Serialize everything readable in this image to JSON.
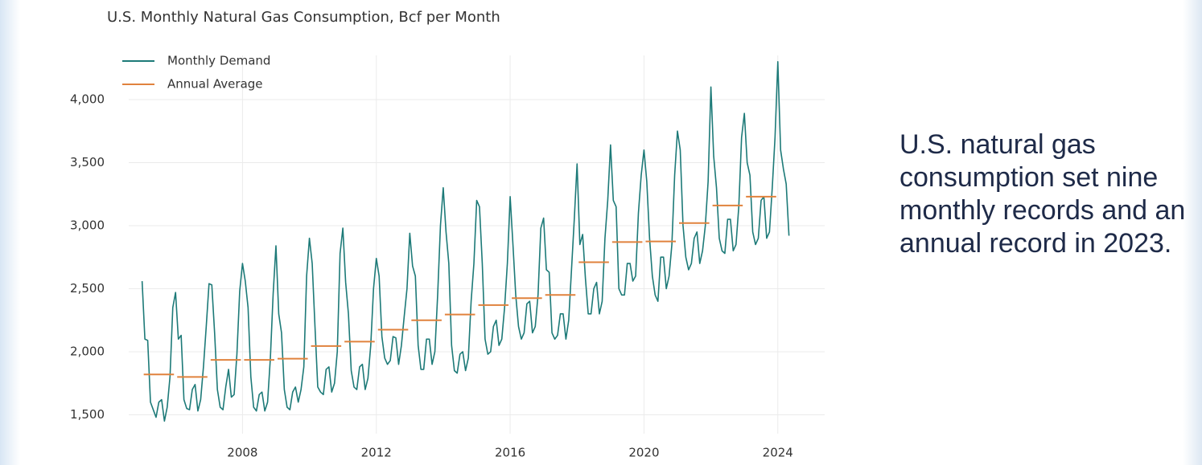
{
  "chart_data": {
    "type": "line",
    "title": "U.S. Monthly Natural Gas Consumption, Bcf per Month",
    "xlim": [
      2004.6,
      2025.4
    ],
    "xticks": [
      2008,
      2012,
      2016,
      2020,
      2024
    ],
    "ylim": [
      1350,
      4350
    ],
    "yticks": [
      {
        "value": 1500,
        "label": "1,500"
      },
      {
        "value": 2000,
        "label": "2,000"
      },
      {
        "value": 2500,
        "label": "2,500"
      },
      {
        "value": 3000,
        "label": "3,000"
      },
      {
        "value": 3500,
        "label": "3,500"
      },
      {
        "value": 4000,
        "label": "4,000"
      }
    ],
    "grid": true,
    "legend": "upper left",
    "series": [
      {
        "name": "Monthly Demand",
        "color": "#1d7a78",
        "x": [
          "2005-01",
          "2005-02",
          "2005-03",
          "2005-04",
          "2005-05",
          "2005-06",
          "2005-07",
          "2005-08",
          "2005-09",
          "2005-10",
          "2005-11",
          "2005-12",
          "2006-01",
          "2006-02",
          "2006-03",
          "2006-04",
          "2006-05",
          "2006-06",
          "2006-07",
          "2006-08",
          "2006-09",
          "2006-10",
          "2006-11",
          "2006-12",
          "2007-01",
          "2007-02",
          "2007-03",
          "2007-04",
          "2007-05",
          "2007-06",
          "2007-07",
          "2007-08",
          "2007-09",
          "2007-10",
          "2007-11",
          "2007-12",
          "2008-01",
          "2008-02",
          "2008-03",
          "2008-04",
          "2008-05",
          "2008-06",
          "2008-07",
          "2008-08",
          "2008-09",
          "2008-10",
          "2008-11",
          "2008-12",
          "2009-01",
          "2009-02",
          "2009-03",
          "2009-04",
          "2009-05",
          "2009-06",
          "2009-07",
          "2009-08",
          "2009-09",
          "2009-10",
          "2009-11",
          "2009-12",
          "2010-01",
          "2010-02",
          "2010-03",
          "2010-04",
          "2010-05",
          "2010-06",
          "2010-07",
          "2010-08",
          "2010-09",
          "2010-10",
          "2010-11",
          "2010-12",
          "2011-01",
          "2011-02",
          "2011-03",
          "2011-04",
          "2011-05",
          "2011-06",
          "2011-07",
          "2011-08",
          "2011-09",
          "2011-10",
          "2011-11",
          "2011-12",
          "2012-01",
          "2012-02",
          "2012-03",
          "2012-04",
          "2012-05",
          "2012-06",
          "2012-07",
          "2012-08",
          "2012-09",
          "2012-10",
          "2012-11",
          "2012-12",
          "2013-01",
          "2013-02",
          "2013-03",
          "2013-04",
          "2013-05",
          "2013-06",
          "2013-07",
          "2013-08",
          "2013-09",
          "2013-10",
          "2013-11",
          "2013-12",
          "2014-01",
          "2014-02",
          "2014-03",
          "2014-04",
          "2014-05",
          "2014-06",
          "2014-07",
          "2014-08",
          "2014-09",
          "2014-10",
          "2014-11",
          "2014-12",
          "2015-01",
          "2015-02",
          "2015-03",
          "2015-04",
          "2015-05",
          "2015-06",
          "2015-07",
          "2015-08",
          "2015-09",
          "2015-10",
          "2015-11",
          "2015-12",
          "2016-01",
          "2016-02",
          "2016-03",
          "2016-04",
          "2016-05",
          "2016-06",
          "2016-07",
          "2016-08",
          "2016-09",
          "2016-10",
          "2016-11",
          "2016-12",
          "2017-01",
          "2017-02",
          "2017-03",
          "2017-04",
          "2017-05",
          "2017-06",
          "2017-07",
          "2017-08",
          "2017-09",
          "2017-10",
          "2017-11",
          "2017-12",
          "2018-01",
          "2018-02",
          "2018-03",
          "2018-04",
          "2018-05",
          "2018-06",
          "2018-07",
          "2018-08",
          "2018-09",
          "2018-10",
          "2018-11",
          "2018-12",
          "2019-01",
          "2019-02",
          "2019-03",
          "2019-04",
          "2019-05",
          "2019-06",
          "2019-07",
          "2019-08",
          "2019-09",
          "2019-10",
          "2019-11",
          "2019-12",
          "2020-01",
          "2020-02",
          "2020-03",
          "2020-04",
          "2020-05",
          "2020-06",
          "2020-07",
          "2020-08",
          "2020-09",
          "2020-10",
          "2020-11",
          "2020-12",
          "2021-01",
          "2021-02",
          "2021-03",
          "2021-04",
          "2021-05",
          "2021-06",
          "2021-07",
          "2021-08",
          "2021-09",
          "2021-10",
          "2021-11",
          "2021-12",
          "2022-01",
          "2022-02",
          "2022-03",
          "2022-04",
          "2022-05",
          "2022-06",
          "2022-07",
          "2022-08",
          "2022-09",
          "2022-10",
          "2022-11",
          "2022-12",
          "2023-01",
          "2023-02",
          "2023-03",
          "2023-04",
          "2023-05",
          "2023-06",
          "2023-07",
          "2023-08",
          "2023-09",
          "2023-10",
          "2023-11",
          "2023-12",
          "2024-01",
          "2024-02",
          "2024-03",
          "2024-04",
          "2024-05"
        ],
        "values": [
          2560,
          2100,
          2090,
          1600,
          1540,
          1480,
          1600,
          1620,
          1450,
          1560,
          1800,
          2350,
          2470,
          2100,
          2130,
          1620,
          1550,
          1540,
          1700,
          1740,
          1530,
          1620,
          1880,
          2200,
          2540,
          2530,
          2150,
          1700,
          1560,
          1540,
          1720,
          1860,
          1640,
          1660,
          1980,
          2480,
          2700,
          2560,
          2350,
          1800,
          1560,
          1530,
          1660,
          1680,
          1530,
          1600,
          1950,
          2460,
          2840,
          2300,
          2150,
          1700,
          1560,
          1540,
          1680,
          1720,
          1600,
          1700,
          1880,
          2600,
          2900,
          2700,
          2200,
          1720,
          1680,
          1660,
          1860,
          1880,
          1680,
          1750,
          2000,
          2780,
          2980,
          2550,
          2300,
          1850,
          1720,
          1700,
          1880,
          1900,
          1700,
          1790,
          2050,
          2500,
          2740,
          2600,
          2120,
          1950,
          1900,
          1930,
          2120,
          2110,
          1900,
          2050,
          2280,
          2500,
          2940,
          2680,
          2600,
          2050,
          1860,
          1860,
          2100,
          2100,
          1900,
          2000,
          2450,
          3000,
          3300,
          2950,
          2700,
          2050,
          1850,
          1830,
          1980,
          2000,
          1850,
          1950,
          2400,
          2700,
          3200,
          3150,
          2700,
          2100,
          1980,
          2000,
          2200,
          2250,
          2050,
          2100,
          2350,
          2700,
          3230,
          2850,
          2450,
          2200,
          2100,
          2150,
          2380,
          2400,
          2150,
          2200,
          2450,
          2980,
          3060,
          2650,
          2630,
          2150,
          2100,
          2130,
          2300,
          2300,
          2100,
          2250,
          2650,
          3050,
          3490,
          2850,
          2930,
          2580,
          2300,
          2300,
          2500,
          2550,
          2300,
          2400,
          2900,
          3200,
          3640,
          3200,
          3150,
          2500,
          2450,
          2450,
          2700,
          2700,
          2560,
          2600,
          3100,
          3400,
          3600,
          3350,
          2900,
          2600,
          2450,
          2400,
          2750,
          2750,
          2500,
          2600,
          2850,
          3400,
          3750,
          3600,
          3000,
          2750,
          2650,
          2700,
          2900,
          2950,
          2700,
          2800,
          3000,
          3350,
          4100,
          3550,
          3300,
          2900,
          2800,
          2780,
          3050,
          3050,
          2800,
          2850,
          3150,
          3700,
          3890,
          3500,
          3400,
          2950,
          2850,
          2900,
          3200,
          3230,
          2900,
          2950,
          3300,
          3700,
          4300,
          3600,
          3450,
          3330,
          2920
        ]
      },
      {
        "name": "Annual Average",
        "color": "#e0823d",
        "x": [
          "2005",
          "2006",
          "2007",
          "2008",
          "2009",
          "2010",
          "2011",
          "2012",
          "2013",
          "2014",
          "2015",
          "2016",
          "2017",
          "2018",
          "2019",
          "2020",
          "2021",
          "2022",
          "2023"
        ],
        "values": [
          1820,
          1800,
          1935,
          1935,
          1945,
          2045,
          2080,
          2175,
          2250,
          2295,
          2370,
          2425,
          2450,
          2710,
          2870,
          2875,
          3020,
          3160,
          3230
        ]
      }
    ]
  },
  "caption": "U.S. natural gas consumption set nine monthly records and an annual record in 2023."
}
